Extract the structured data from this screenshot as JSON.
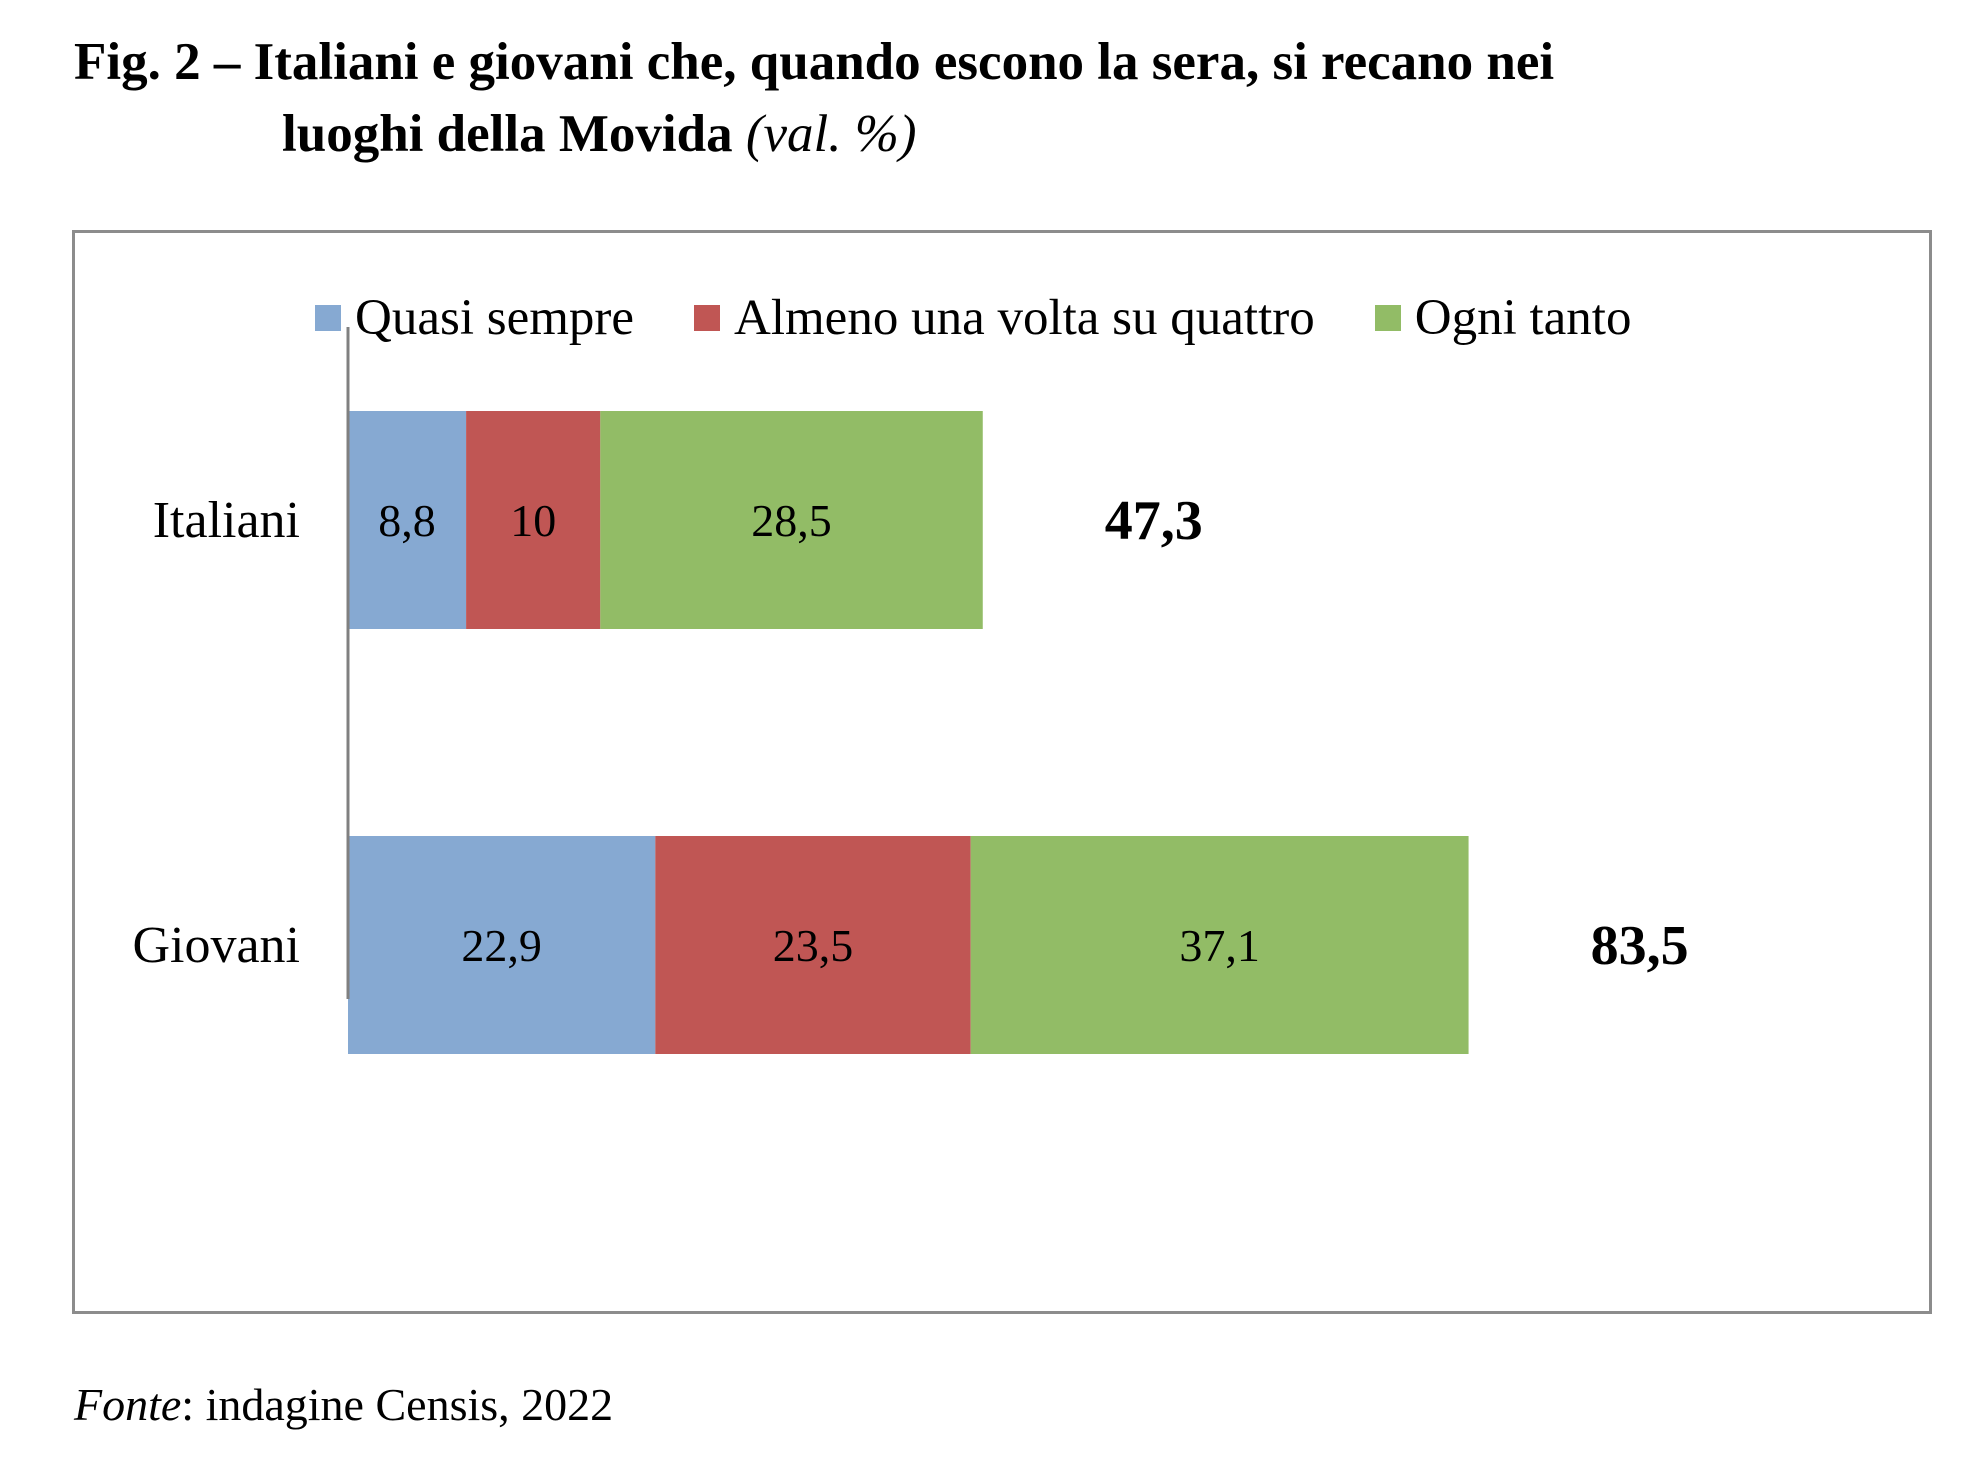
{
  "figure": {
    "title_line1": "Fig. 2 – Italiani e giovani che, quando escono la sera, si recano nei",
    "title_line2": "luoghi della Movida",
    "title_unit": "(val. %)"
  },
  "source": {
    "label": "Fonte",
    "text": ": indagine Censis, 2022"
  },
  "chart_data": {
    "type": "bar",
    "orientation": "horizontal",
    "stacked": true,
    "title": "Italiani e giovani che, quando escono la sera, si recano nei luoghi della Movida",
    "unit": "val. %",
    "categories": [
      "Italiani",
      "Giovani"
    ],
    "series": [
      {
        "name": "Quasi sempre",
        "values": [
          8.8,
          22.9
        ],
        "labels": [
          "8,8",
          "22,9"
        ],
        "color": "#86a9d2"
      },
      {
        "name": "Almeno una volta su quattro",
        "values": [
          10,
          23.5
        ],
        "labels": [
          "10",
          "23,5"
        ],
        "color": "#c05654"
      },
      {
        "name": "Ogni tanto",
        "values": [
          28.5,
          37.1
        ],
        "labels": [
          "28,5",
          "37,1"
        ],
        "color": "#92bc66"
      }
    ],
    "totals": [
      47.3,
      83.5
    ],
    "total_labels": [
      "47,3",
      "83,5"
    ],
    "xlim": [
      0,
      90
    ],
    "legend_position": "top",
    "grid": false,
    "axis_color": "#808080"
  }
}
